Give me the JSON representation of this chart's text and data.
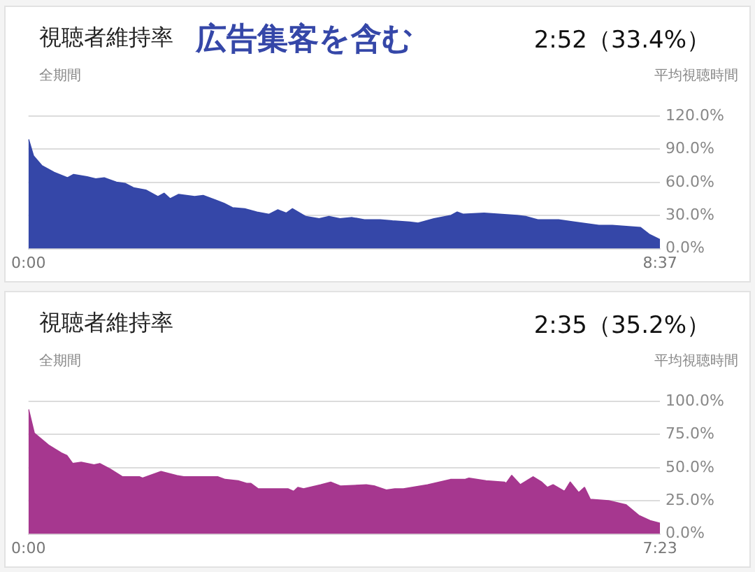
{
  "chart_data": [
    {
      "type": "area",
      "title": "視聴者維持率",
      "subtitle": "全期間",
      "annotations": [
        "広告集客を含む",
        "2:52（33.4%）",
        "平均視聴時間"
      ],
      "color": "#3547a8",
      "x": [
        0,
        4,
        11,
        21,
        32,
        37,
        48,
        55,
        62,
        72,
        79,
        86,
        96,
        106,
        111,
        116,
        123,
        136,
        143,
        153,
        160,
        167,
        177,
        187,
        197,
        204,
        211,
        216,
        227,
        238,
        246,
        255,
        265,
        275,
        288,
        298,
        312,
        319,
        332,
        346,
        351,
        356,
        373,
        400,
        407,
        417,
        434,
        447,
        467,
        478,
        501,
        508,
        517
      ],
      "values": [
        99,
        84,
        75,
        69,
        64,
        67,
        65,
        63,
        64,
        60,
        59,
        55,
        53,
        47,
        50,
        45,
        49,
        47,
        48,
        44,
        41,
        37,
        36,
        33,
        31,
        35,
        32,
        36,
        29,
        27,
        29,
        27,
        28,
        26,
        26,
        25,
        24,
        23,
        27,
        30,
        33,
        31,
        32,
        30,
        29,
        26,
        26,
        24,
        21,
        21,
        19,
        13,
        8
      ],
      "xlim": [
        0,
        517
      ],
      "xticks": [
        {
          "value": 0,
          "label": "0:00"
        },
        {
          "value": 517,
          "label": "8:37"
        }
      ],
      "ylim": [
        0,
        120
      ],
      "yticks": [
        {
          "value": 0,
          "label": "0.0%"
        },
        {
          "value": 30,
          "label": "30.0%"
        },
        {
          "value": 60,
          "label": "60.0%"
        },
        {
          "value": 90,
          "label": "90.0%"
        },
        {
          "value": 120,
          "label": "120.0%"
        }
      ],
      "grid": "y"
    },
    {
      "type": "area",
      "title": "視聴者維持率",
      "subtitle": "全期間",
      "annotations": [
        "2:35（35.2%）",
        "平均視聴時間"
      ],
      "color": "#a6378f",
      "x": [
        0,
        4,
        14,
        23,
        27,
        31,
        37,
        46,
        50,
        57,
        66,
        78,
        80,
        93,
        104,
        109,
        112,
        121,
        124,
        133,
        138,
        147,
        153,
        156,
        161,
        182,
        186,
        189,
        193,
        205,
        212,
        219,
        237,
        243,
        251,
        257,
        263,
        280,
        296,
        306,
        309,
        321,
        334,
        335,
        339,
        345,
        354,
        360,
        364,
        368,
        376,
        380,
        386,
        390,
        394,
        407,
        419,
        428,
        436,
        443
      ],
      "values": [
        94,
        76,
        67,
        61,
        59,
        53,
        54,
        52,
        53,
        49,
        43,
        43,
        42,
        47,
        44,
        43,
        43,
        43,
        43,
        43,
        41,
        40,
        38,
        38,
        34,
        34,
        32,
        35,
        34,
        37,
        39,
        36,
        37,
        36,
        33,
        34,
        34,
        37,
        41,
        41,
        42,
        40,
        39,
        38,
        44,
        37,
        43,
        39,
        35,
        37,
        32,
        39,
        31,
        35,
        26,
        25,
        22,
        14,
        10,
        8
      ],
      "xlim": [
        0,
        443
      ],
      "xticks": [
        {
          "value": 0,
          "label": "0:00"
        },
        {
          "value": 443,
          "label": "7:23"
        }
      ],
      "ylim": [
        0,
        100
      ],
      "yticks": [
        {
          "value": 0,
          "label": "0.0%"
        },
        {
          "value": 25,
          "label": "25.0%"
        },
        {
          "value": 50,
          "label": "50.0%"
        },
        {
          "value": 75,
          "label": "75.0%"
        },
        {
          "value": 100,
          "label": "100.0%"
        }
      ],
      "grid": "y"
    }
  ]
}
